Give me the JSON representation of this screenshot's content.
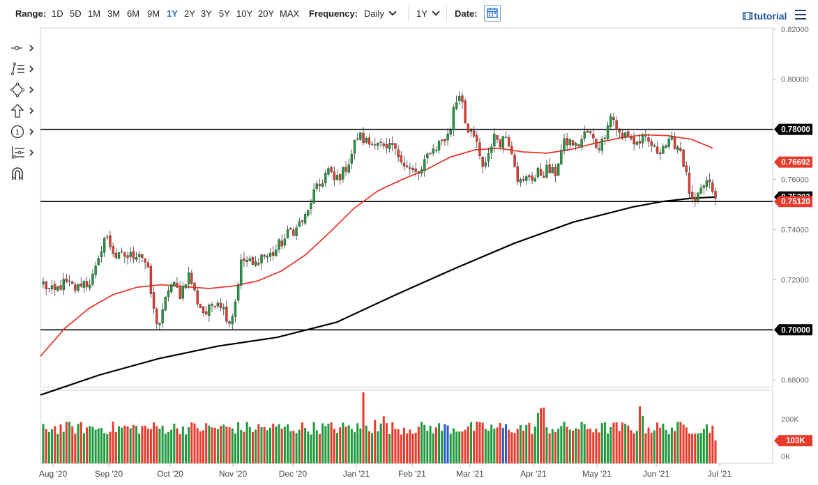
{
  "toolbar": {
    "range_label": "Range:",
    "ranges": [
      "1D",
      "5D",
      "1M",
      "3M",
      "6M",
      "9M",
      "1Y",
      "2Y",
      "3Y",
      "5Y",
      "10Y",
      "20Y",
      "MAX"
    ],
    "active_range": "1Y",
    "frequency_label": "Frequency:",
    "frequency_value": "Daily",
    "period_value": "1Y",
    "date_label": "Date:",
    "tutorial_label": "tutorial"
  },
  "icons": [
    "crosshair-icon",
    "line-tools-icon",
    "shapes-icon",
    "arrow-icon",
    "annotation-icon",
    "fibonacci-icon",
    "magnet-icon",
    "calendar-icon",
    "menu-icon",
    "film-icon"
  ],
  "colors": {
    "up": "#1e9a3c",
    "down": "#e8392b",
    "ma50": "#e8392b",
    "ma200": "#000000",
    "badge_red": "#e8392b",
    "badge_black": "#000000"
  },
  "chart_data": {
    "type": "candlestick",
    "x_ticks": [
      "Aug '20",
      "Sep '20",
      "Oct '20",
      "Nov '20",
      "Dec '20",
      "Jan '21",
      "Feb '21",
      "Mar '21",
      "Apr '21",
      "May '21",
      "Jun '21",
      "Jul '21"
    ],
    "y_ticks": [
      "0.82000",
      "0.80000",
      "0.78000",
      "0.76000",
      "0.74000",
      "0.72000",
      "0.70000",
      "0.68000"
    ],
    "ylim": [
      0.677,
      0.8205
    ],
    "volume_ticks": [
      "200K",
      "0K"
    ],
    "horizontal_lines": [
      0.78,
      0.7512,
      0.7
    ],
    "labels": [
      {
        "text": "0.78000",
        "value": 0.78,
        "style": "black"
      },
      {
        "text": "0.76692",
        "value": 0.76692,
        "style": "red"
      },
      {
        "text": "0.75303",
        "value": 0.75303,
        "style": "black"
      },
      {
        "text": "0.75120",
        "value": 0.7512,
        "style": "red"
      },
      {
        "text": "0.70000",
        "value": 0.7,
        "style": "black"
      }
    ],
    "volume_label": {
      "text": "103K",
      "value": 103
    },
    "ma50": [
      [
        0,
        0.6895
      ],
      [
        15,
        0.7005
      ],
      [
        30,
        0.7085
      ],
      [
        45,
        0.714
      ],
      [
        60,
        0.717
      ],
      [
        75,
        0.718
      ],
      [
        90,
        0.7172
      ],
      [
        105,
        0.7165
      ],
      [
        120,
        0.7175
      ],
      [
        135,
        0.7195
      ],
      [
        150,
        0.7235
      ],
      [
        165,
        0.73
      ],
      [
        180,
        0.739
      ],
      [
        195,
        0.7485
      ],
      [
        210,
        0.7555
      ],
      [
        225,
        0.76
      ],
      [
        240,
        0.764
      ],
      [
        255,
        0.769
      ],
      [
        270,
        0.7718
      ],
      [
        285,
        0.7725
      ],
      [
        300,
        0.771
      ],
      [
        315,
        0.7705
      ],
      [
        330,
        0.772
      ],
      [
        345,
        0.7745
      ],
      [
        360,
        0.7765
      ],
      [
        375,
        0.7778
      ],
      [
        390,
        0.7775
      ],
      [
        405,
        0.776
      ],
      [
        418,
        0.7725
      ]
    ],
    "ma200": [
      [
        0,
        0.674
      ],
      [
        40,
        0.682
      ],
      [
        80,
        0.6885
      ],
      [
        120,
        0.6935
      ],
      [
        160,
        0.697
      ],
      [
        200,
        0.703
      ],
      [
        240,
        0.714
      ],
      [
        280,
        0.7245
      ],
      [
        320,
        0.7345
      ],
      [
        360,
        0.743
      ],
      [
        400,
        0.749
      ],
      [
        420,
        0.7512
      ],
      [
        440,
        0.7525
      ],
      [
        456,
        0.753
      ]
    ],
    "candles": [],
    "volumes": []
  }
}
